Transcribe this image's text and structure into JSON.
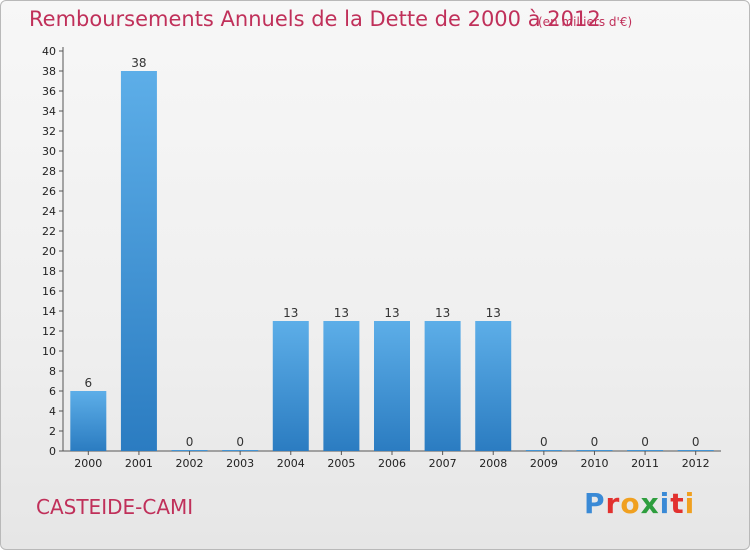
{
  "title": "Remboursements Annuels de la Dette de 2000 à 2012",
  "unit_label": "(en milliers d'€)",
  "commune": "CASTEIDE-CAMI",
  "brand": {
    "letters": [
      "P",
      "r",
      "o",
      "x",
      "i",
      "t",
      "i"
    ],
    "colors": [
      "#3a8ad6",
      "#e2312f",
      "#f0a020",
      "#2e9e3e",
      "#3a8ad6",
      "#e2312f",
      "#f0a020"
    ]
  },
  "colors": {
    "title": "#c0305a",
    "bar_light": "#5daee8",
    "bar_dark": "#2b7cc1",
    "grid": "#cfcfcf",
    "axis": "#555555"
  },
  "chart_data": {
    "type": "bar",
    "title": "Remboursements Annuels de la Dette de 2000 à 2012",
    "categories": [
      "2000",
      "2001",
      "2002",
      "2003",
      "2004",
      "2005",
      "2006",
      "2007",
      "2008",
      "2009",
      "2010",
      "2011",
      "2012"
    ],
    "values": [
      6,
      38,
      0,
      0,
      13,
      13,
      13,
      13,
      13,
      0,
      0,
      0,
      0
    ],
    "data_labels": [
      "6",
      "38",
      "0",
      "0",
      "13",
      "13",
      "13",
      "13",
      "13",
      "0",
      "0",
      "0",
      "0"
    ],
    "ylim": [
      0,
      40
    ],
    "y_ticks": [
      0,
      2,
      4,
      6,
      8,
      10,
      12,
      14,
      16,
      18,
      20,
      22,
      24,
      26,
      28,
      30,
      32,
      34,
      36,
      38,
      40
    ],
    "grid": false,
    "legend": "none"
  }
}
